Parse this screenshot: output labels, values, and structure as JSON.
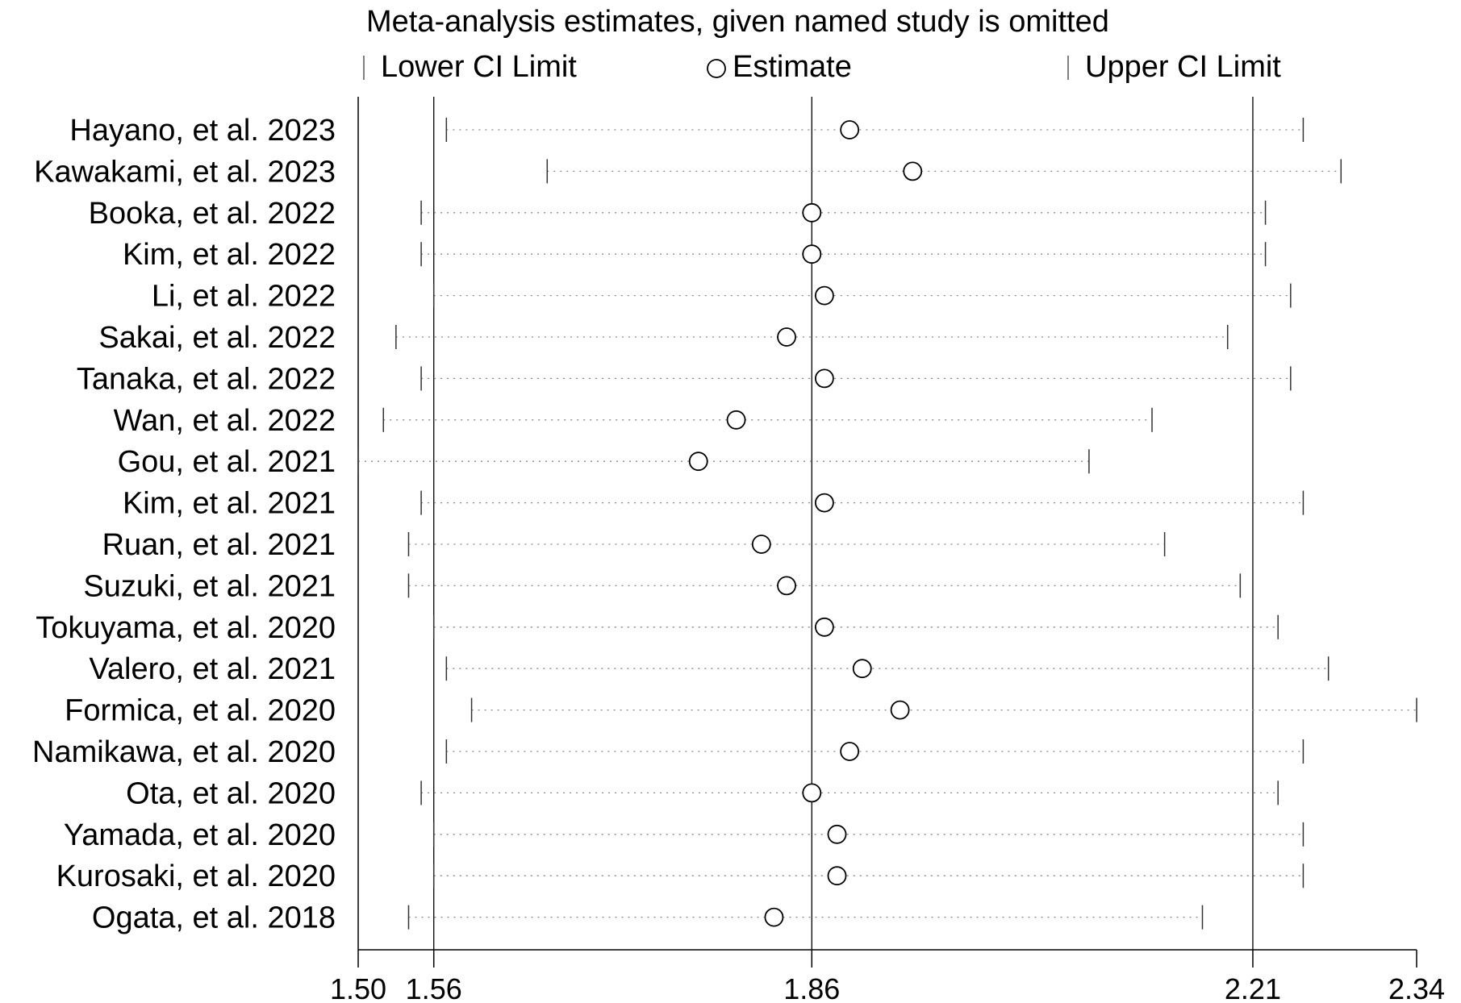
{
  "chart_data": {
    "type": "sensitivity-forest",
    "title": "Meta-analysis estimates, given named study is omitted",
    "legend": {
      "lower": "Lower CI Limit",
      "estimate": "Estimate",
      "upper": "Upper CI Limit"
    },
    "xlim": [
      1.5,
      2.34
    ],
    "xticks": [
      1.5,
      1.56,
      1.86,
      2.21,
      2.34
    ],
    "tick_labels": [
      "1.50",
      "1.56",
      "1.86",
      "2.21",
      "2.34"
    ],
    "reference_lines": [
      1.56,
      1.86,
      2.21
    ],
    "studies": [
      {
        "name": "Hayano, et al. 2023",
        "lower": 1.57,
        "estimate": 1.89,
        "upper": 2.25
      },
      {
        "name": "Kawakami, et al. 2023",
        "lower": 1.65,
        "estimate": 1.94,
        "upper": 2.28
      },
      {
        "name": "Booka, et al. 2022",
        "lower": 1.55,
        "estimate": 1.86,
        "upper": 2.22
      },
      {
        "name": "Kim, et al. 2022",
        "lower": 1.55,
        "estimate": 1.86,
        "upper": 2.22
      },
      {
        "name": "Li, et al. 2022",
        "lower": 1.56,
        "estimate": 1.87,
        "upper": 2.24
      },
      {
        "name": "Sakai, et al. 2022",
        "lower": 1.53,
        "estimate": 1.84,
        "upper": 2.19
      },
      {
        "name": "Tanaka, et al. 2022",
        "lower": 1.55,
        "estimate": 1.87,
        "upper": 2.24
      },
      {
        "name": "Wan, et al. 2022",
        "lower": 1.52,
        "estimate": 1.8,
        "upper": 2.13
      },
      {
        "name": "Gou, et al. 2021",
        "lower": 1.5,
        "estimate": 1.77,
        "upper": 2.08
      },
      {
        "name": "Kim, et al. 2021",
        "lower": 1.55,
        "estimate": 1.87,
        "upper": 2.25
      },
      {
        "name": "Ruan, et al. 2021",
        "lower": 1.54,
        "estimate": 1.82,
        "upper": 2.14
      },
      {
        "name": "Suzuki, et al. 2021",
        "lower": 1.54,
        "estimate": 1.84,
        "upper": 2.2
      },
      {
        "name": "Tokuyama, et al. 2020",
        "lower": 1.56,
        "estimate": 1.87,
        "upper": 2.23
      },
      {
        "name": "Valero, et al. 2021",
        "lower": 1.57,
        "estimate": 1.9,
        "upper": 2.27
      },
      {
        "name": "Formica, et al. 2020",
        "lower": 1.59,
        "estimate": 1.93,
        "upper": 2.34
      },
      {
        "name": "Namikawa, et al. 2020",
        "lower": 1.57,
        "estimate": 1.89,
        "upper": 2.25
      },
      {
        "name": "Ota, et al. 2020",
        "lower": 1.55,
        "estimate": 1.86,
        "upper": 2.23
      },
      {
        "name": "Yamada, et al. 2020",
        "lower": 1.56,
        "estimate": 1.88,
        "upper": 2.25
      },
      {
        "name": "Kurosaki, et al. 2020",
        "lower": 1.56,
        "estimate": 1.88,
        "upper": 2.25
      },
      {
        "name": "Ogata, et al. 2018",
        "lower": 1.54,
        "estimate": 1.83,
        "upper": 2.17
      }
    ]
  }
}
